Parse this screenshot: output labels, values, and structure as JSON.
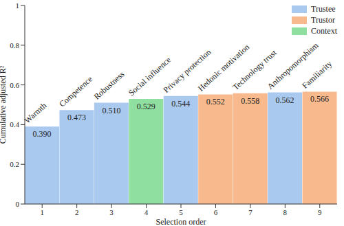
{
  "chart_data": {
    "type": "bar",
    "x_label": "Selection order",
    "y_label": "Cumulative adjusted R²",
    "categories": [
      "1",
      "2",
      "3",
      "4",
      "5",
      "6",
      "7",
      "8",
      "9"
    ],
    "annotations": [
      "Warmth",
      "Competence",
      "Robustness",
      "Social influence",
      "Privacy protection",
      "Hedonic motivation",
      "Technology trust",
      "Anthropomorphism",
      "Familiarity"
    ],
    "series": [
      {
        "name": "Trustee",
        "color": "#a9c9ef",
        "values": [
          0.39,
          0.473,
          0.51,
          null,
          0.544,
          null,
          null,
          0.562,
          null
        ],
        "value_labels": [
          "0.390",
          "0.473",
          "0.510",
          null,
          "0.544",
          null,
          null,
          "0.562",
          null
        ]
      },
      {
        "name": "Trustor",
        "color": "#f8b98d",
        "values": [
          null,
          null,
          null,
          null,
          null,
          0.552,
          0.558,
          null,
          0.566
        ],
        "value_labels": [
          null,
          null,
          null,
          null,
          null,
          "0.552",
          "0.558",
          null,
          "0.566"
        ]
      },
      {
        "name": "Context",
        "color": "#8fe0a0",
        "values": [
          null,
          null,
          null,
          0.529,
          null,
          null,
          null,
          null,
          null
        ],
        "value_labels": [
          null,
          null,
          null,
          "0.529",
          null,
          null,
          null,
          null,
          null
        ]
      }
    ],
    "ylim": [
      0,
      1
    ],
    "yticks": [
      0,
      0.2,
      0.4,
      0.6,
      0.8,
      1
    ],
    "legend": "upper right",
    "data_labels": true,
    "grid": false
  }
}
